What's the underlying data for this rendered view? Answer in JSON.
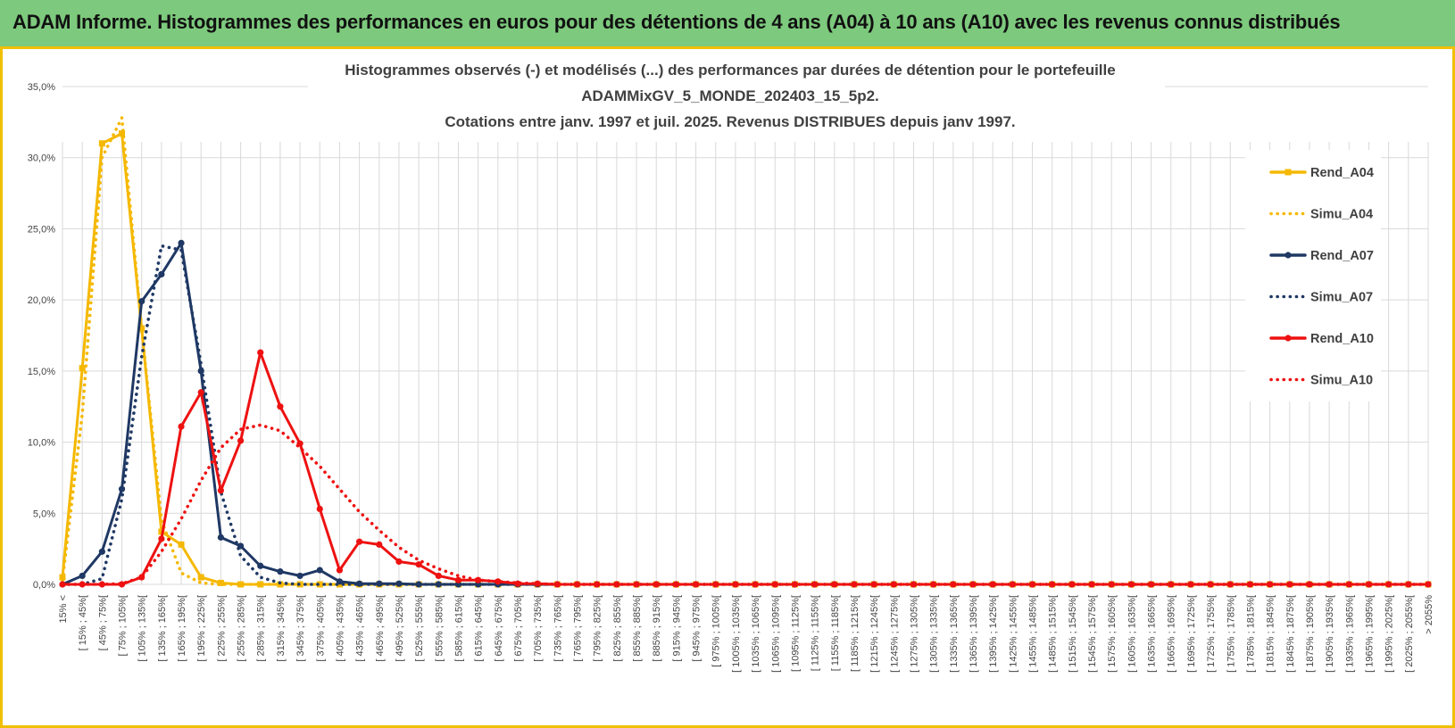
{
  "header": {
    "title": "ADAM Informe. Histogrammes des performances en euros pour des détentions de 4 ans (A04) à 10 ans (A10) avec les revenus connus distribués"
  },
  "colors": {
    "banner": "#7dc97d",
    "frame": "#f0c000",
    "A04": "#f5b800",
    "A07": "#1f3864",
    "A10": "#ee1111",
    "grid": "#d9d9d9"
  },
  "chart_data": {
    "type": "line",
    "title_lines": [
      "Histogrammes observés (-) et modélisés (...) des performances par durées de détention pour  le portefeuille",
      "ADAMMixGV_5_MONDE_202403_15_5p2.",
      "Cotations entre janv. 1997 et juil. 2025. Revenus DISTRIBUES depuis janv 1997."
    ],
    "xlabel": "",
    "ylabel": "",
    "ylim": [
      0,
      35
    ],
    "yticks": [
      "0,0%",
      "5,0%",
      "10,0%",
      "15,0%",
      "20,0%",
      "25,0%",
      "30,0%",
      "35,0%"
    ],
    "grid": true,
    "legend_position": "right",
    "categories": [
      "15% <",
      "[ 15% ; 45%[",
      "[ 45% ; 75%[",
      "[ 75% ; 105%[",
      "[ 105% ; 135%[",
      "[ 135% ; 165%[",
      "[ 165% ; 195%[",
      "[ 195% ; 225%[",
      "[ 225% ; 255%[",
      "[ 255% ; 285%[",
      "[ 285% ; 315%[",
      "[ 315% ; 345%[",
      "[ 345% ; 375%[",
      "[ 375% ; 405%[",
      "[ 405% ; 435%[",
      "[ 435% ; 465%[",
      "[ 465% ; 495%[",
      "[ 495% ; 525%[",
      "[ 525% ; 555%[",
      "[ 555% ; 585%[",
      "[ 585% ; 615%[",
      "[ 615% ; 645%[",
      "[ 645% ; 675%[",
      "[ 675% ; 705%[",
      "[ 705% ; 735%[",
      "[ 735% ; 765%[",
      "[ 765% ; 795%[",
      "[ 795% ; 825%[",
      "[ 825% ; 855%[",
      "[ 855% ; 885%[",
      "[ 885% ; 915%[",
      "[ 915% ; 945%[",
      "[ 945% ; 975%[",
      "[ 975% ; 1005%[",
      "[ 1005% ; 1035%[",
      "[ 1035% ; 1065%[",
      "[ 1065% ; 1095%[",
      "[ 1095% ; 1125%[",
      "[ 1125% ; 1155%[",
      "[ 1155% ; 1185%[",
      "[ 1185% ; 1215%[",
      "[ 1215% ; 1245%[",
      "[ 1245% ; 1275%[",
      "[ 1275% ; 1305%[",
      "[ 1305% ; 1335%[",
      "[ 1335% ; 1365%[",
      "[ 1365% ; 1395%[",
      "[ 1395% ; 1425%[",
      "[ 1425% ; 1455%[",
      "[ 1455% ; 1485%[",
      "[ 1485% ; 1515%[",
      "[ 1515% ; 1545%[",
      "[ 1545% ; 1575%[",
      "[ 1575% ; 1605%[",
      "[ 1605% ; 1635%[",
      "[ 1635% ; 1665%[",
      "[ 1665% ; 1695%[",
      "[ 1695% ; 1725%[",
      "[ 1725% ; 1755%[",
      "[ 1755% ; 1785%[",
      "[ 1785% ; 1815%[",
      "[ 1815% ; 1845%[",
      "[ 1845% ; 1875%[",
      "[ 1875% ; 1905%[",
      "[ 1905% ; 1935%[",
      "[ 1935% ; 1965%[",
      "[ 1965% ; 1995%[",
      "[ 1995% ; 2025%[",
      "[ 2025% ; 2055%[",
      "> 2055%"
    ],
    "series": [
      {
        "name": "Rend_A04",
        "style": "solid",
        "color": "#f5b800",
        "values": [
          0.5,
          15.2,
          31.0,
          31.7,
          18.0,
          3.7,
          2.8,
          0.5,
          0.1,
          0,
          0,
          0,
          0,
          0,
          0,
          0,
          0,
          0,
          0,
          0,
          0,
          0,
          0,
          0,
          0,
          0,
          0,
          0,
          0,
          0,
          0,
          0,
          0,
          0,
          0,
          0,
          0,
          0,
          0,
          0,
          0,
          0,
          0,
          0,
          0,
          0,
          0,
          0,
          0,
          0,
          0,
          0,
          0,
          0,
          0,
          0,
          0,
          0,
          0,
          0,
          0,
          0,
          0,
          0,
          0,
          0,
          0,
          0,
          0,
          0
        ]
      },
      {
        "name": "Simu_A04",
        "style": "dotted",
        "color": "#f5b800",
        "values": [
          0.3,
          12.0,
          30.0,
          32.8,
          18.0,
          4.5,
          0.8,
          0.1,
          0,
          0,
          0,
          0,
          0,
          0,
          0,
          0,
          0,
          0,
          0,
          0,
          0,
          0,
          0,
          0,
          0,
          0,
          0,
          0,
          0,
          0,
          0,
          0,
          0,
          0,
          0,
          0,
          0,
          0,
          0,
          0,
          0,
          0,
          0,
          0,
          0,
          0,
          0,
          0,
          0,
          0,
          0,
          0,
          0,
          0,
          0,
          0,
          0,
          0,
          0,
          0,
          0,
          0,
          0,
          0,
          0,
          0,
          0,
          0,
          0,
          0
        ]
      },
      {
        "name": "Rend_A07",
        "style": "solid",
        "color": "#1f3864",
        "values": [
          0.0,
          0.6,
          2.3,
          6.7,
          19.9,
          21.8,
          24.0,
          15.0,
          3.3,
          2.7,
          1.3,
          0.9,
          0.6,
          1.0,
          0.2,
          0.05,
          0.05,
          0.05,
          0,
          0,
          0,
          0,
          0,
          0,
          0,
          0,
          0,
          0,
          0,
          0,
          0,
          0,
          0,
          0,
          0,
          0,
          0,
          0,
          0,
          0,
          0,
          0,
          0,
          0,
          0,
          0,
          0,
          0,
          0,
          0,
          0,
          0,
          0,
          0,
          0,
          0,
          0,
          0,
          0,
          0,
          0,
          0,
          0,
          0,
          0,
          0,
          0,
          0,
          0,
          0
        ]
      },
      {
        "name": "Simu_A07",
        "style": "dotted",
        "color": "#1f3864",
        "values": [
          0,
          0,
          0.4,
          6.0,
          16.0,
          23.8,
          23.5,
          15.5,
          6.5,
          2.0,
          0.5,
          0.1,
          0,
          0,
          0,
          0,
          0,
          0,
          0,
          0,
          0,
          0,
          0,
          0,
          0,
          0,
          0,
          0,
          0,
          0,
          0,
          0,
          0,
          0,
          0,
          0,
          0,
          0,
          0,
          0,
          0,
          0,
          0,
          0,
          0,
          0,
          0,
          0,
          0,
          0,
          0,
          0,
          0,
          0,
          0,
          0,
          0,
          0,
          0,
          0,
          0,
          0,
          0,
          0,
          0,
          0,
          0,
          0,
          0,
          0
        ]
      },
      {
        "name": "Rend_A10",
        "style": "solid",
        "color": "#ee1111",
        "values": [
          0,
          0,
          0,
          0,
          0.5,
          3.2,
          11.1,
          13.5,
          6.6,
          10.1,
          16.3,
          12.5,
          9.9,
          5.3,
          1.0,
          3.0,
          2.8,
          1.6,
          1.4,
          0.6,
          0.3,
          0.3,
          0.2,
          0.05,
          0.05,
          0,
          0,
          0,
          0,
          0,
          0,
          0,
          0,
          0,
          0,
          0,
          0,
          0,
          0,
          0,
          0,
          0,
          0,
          0,
          0,
          0,
          0,
          0,
          0,
          0,
          0,
          0,
          0,
          0,
          0,
          0,
          0,
          0,
          0,
          0,
          0,
          0,
          0,
          0,
          0,
          0,
          0,
          0,
          0,
          0
        ]
      },
      {
        "name": "Simu_A10",
        "style": "dotted",
        "color": "#ee1111",
        "values": [
          0,
          0,
          0,
          0.05,
          0.5,
          2.3,
          4.6,
          7.3,
          9.6,
          10.9,
          11.2,
          10.8,
          9.6,
          8.3,
          6.7,
          5.1,
          3.8,
          2.6,
          1.7,
          1.1,
          0.6,
          0.3,
          0.2,
          0.1,
          0.05,
          0,
          0,
          0,
          0,
          0,
          0,
          0,
          0,
          0,
          0,
          0,
          0,
          0,
          0,
          0,
          0,
          0,
          0,
          0,
          0,
          0,
          0,
          0,
          0,
          0,
          0,
          0,
          0,
          0,
          0,
          0,
          0,
          0,
          0,
          0,
          0,
          0,
          0,
          0,
          0,
          0,
          0,
          0,
          0,
          0
        ]
      }
    ],
    "legend": [
      "Rend_A04",
      "Simu_A04",
      "Rend_A07",
      "Simu_A07",
      "Rend_A10",
      "Simu_A10"
    ]
  }
}
